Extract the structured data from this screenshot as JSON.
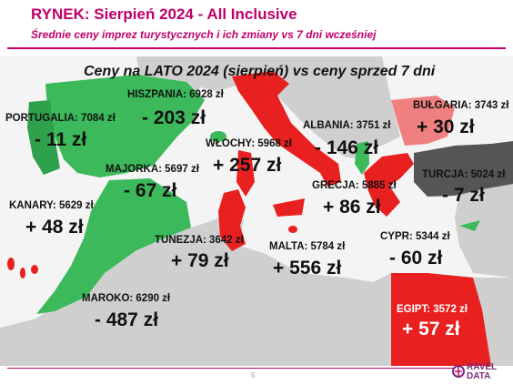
{
  "header": {
    "title": "RYNEK: Sierpień 2024 - All Inclusive",
    "subtitle": "Średnie ceny imprez turystycznych i ich zmiany vs 7 dni wcześniej"
  },
  "map_heading": "Ceny na LATO 2024 (sierpień) vs ceny sprzed 7 dni",
  "destinations": {
    "portugalia": {
      "label": "PORTUGALIA: 7084 zł",
      "change": "- 11 zł"
    },
    "hiszpania": {
      "label": "HISZPANIA: 6928 zł",
      "change": "- 203 zł"
    },
    "majorka": {
      "label": "MAJORKA: 5697 zł",
      "change": "- 67 zł"
    },
    "kanary": {
      "label": "KANARY: 5629 zł",
      "change": "+ 48 zł"
    },
    "maroko": {
      "label": "MAROKO: 6290 zł",
      "change": "- 487 zł"
    },
    "wlochy": {
      "label": "WŁOCHY: 5968 zł",
      "change": "+ 257 zł"
    },
    "tunezja": {
      "label": "TUNEZJA: 3642 zł",
      "change": "+ 79 zł"
    },
    "malta": {
      "label": "MALTA: 5784 zł",
      "change": "+ 556 zł"
    },
    "albania": {
      "label": "ALBANIA: 3751 zł",
      "change": "- 146 zł"
    },
    "grecja": {
      "label": "GRECJA: 5885 zł",
      "change": "+ 86 zł"
    },
    "bulgaria": {
      "label": "BUŁGARIA: 3743 zł",
      "change": "+ 30 zł"
    },
    "turcja": {
      "label": "TURCJA: 5024 zł",
      "change": "- 7 zł"
    },
    "cypr": {
      "label": "CYPR: 5344 zł",
      "change": "- 60 zł"
    },
    "egipt": {
      "label": "EGIPT: 3572 zł",
      "change": "+ 57 zł"
    }
  },
  "colors": {
    "brand": "#c0006a",
    "price_decrease": "#3cb95a",
    "price_increase": "#e8201f",
    "small_increase": "#f08080",
    "small_change": "#555555",
    "land": "#cfcfcf",
    "sea": "#f4f4f4"
  },
  "footer": {
    "page_number": "5",
    "logo_line1": "RAVEL",
    "logo_line2": "DATA"
  }
}
